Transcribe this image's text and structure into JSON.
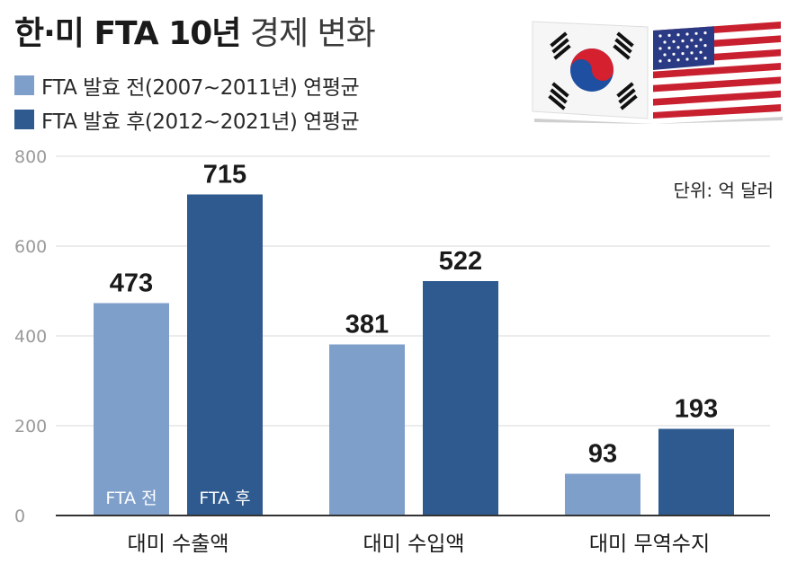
{
  "header": {
    "title_bold": "한·미 FTA 10년",
    "title_light": "경제 변화"
  },
  "legend": {
    "before_label": "FTA 발효 전(2007~2011년) 연평균",
    "after_label": "FTA 발효 후(2012~2021년) 연평균"
  },
  "unit_label": "단위: 억 달러",
  "colors": {
    "before": "#7f9fcb",
    "after": "#2e5a8f",
    "grid": "#d9d9d9",
    "axis": "#333333",
    "tick_text": "#9a9a9a"
  },
  "chart_data": {
    "type": "bar",
    "categories": [
      "대미 수출액",
      "대미 수입액",
      "대미 무역수지"
    ],
    "series": [
      {
        "name": "FTA 발효 전(2007~2011년) 연평균",
        "values": [
          473,
          381,
          93
        ]
      },
      {
        "name": "FTA 발효 후(2012~2021년) 연평균",
        "values": [
          715,
          522,
          193
        ]
      }
    ],
    "inbar_labels": [
      "FTA 전",
      "FTA 후"
    ],
    "yticks": [
      0,
      200,
      400,
      600,
      800
    ],
    "ylim": [
      0,
      800
    ],
    "grid": true,
    "legend_position": "top-left",
    "unit": "억 달러"
  }
}
